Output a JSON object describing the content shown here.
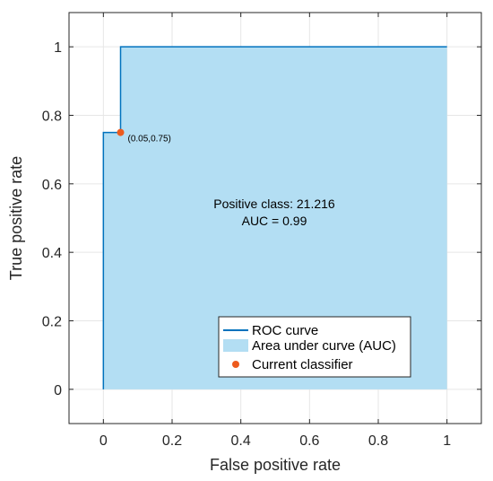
{
  "chart_data": {
    "type": "area",
    "xlabel": "False positive rate",
    "ylabel": "True positive rate",
    "xlim": [
      -0.1,
      1.1
    ],
    "ylim": [
      -0.1,
      1.1
    ],
    "xticks": [
      0,
      0.2,
      0.4,
      0.6,
      0.8,
      1
    ],
    "yticks": [
      0,
      0.2,
      0.4,
      0.6,
      0.8,
      1
    ],
    "xtick_labels": [
      "0",
      "0.2",
      "0.4",
      "0.6",
      "0.8",
      "1"
    ],
    "ytick_labels": [
      "0",
      "0.2",
      "0.4",
      "0.6",
      "0.8",
      "1"
    ],
    "grid": true,
    "series": [
      {
        "name": "ROC curve",
        "x": [
          0,
          0,
          0.05,
          0.05,
          1
        ],
        "y": [
          0,
          0.75,
          0.75,
          1,
          1
        ]
      }
    ],
    "area_label": "Area under curve (AUC)",
    "current_classifier": {
      "name": "Current classifier",
      "x": 0.05,
      "y": 0.75,
      "label": "(0.05,0.75)"
    },
    "annotation_lines": [
      "Positive class: 21.216",
      "AUC = 0.99"
    ],
    "legend_position": "bottom-right",
    "colors": {
      "line": "#0072BD",
      "area": "#B3DEF3",
      "marker": "#ED5B1E",
      "grid": "#E6E6E6",
      "axis": "#262626"
    }
  }
}
